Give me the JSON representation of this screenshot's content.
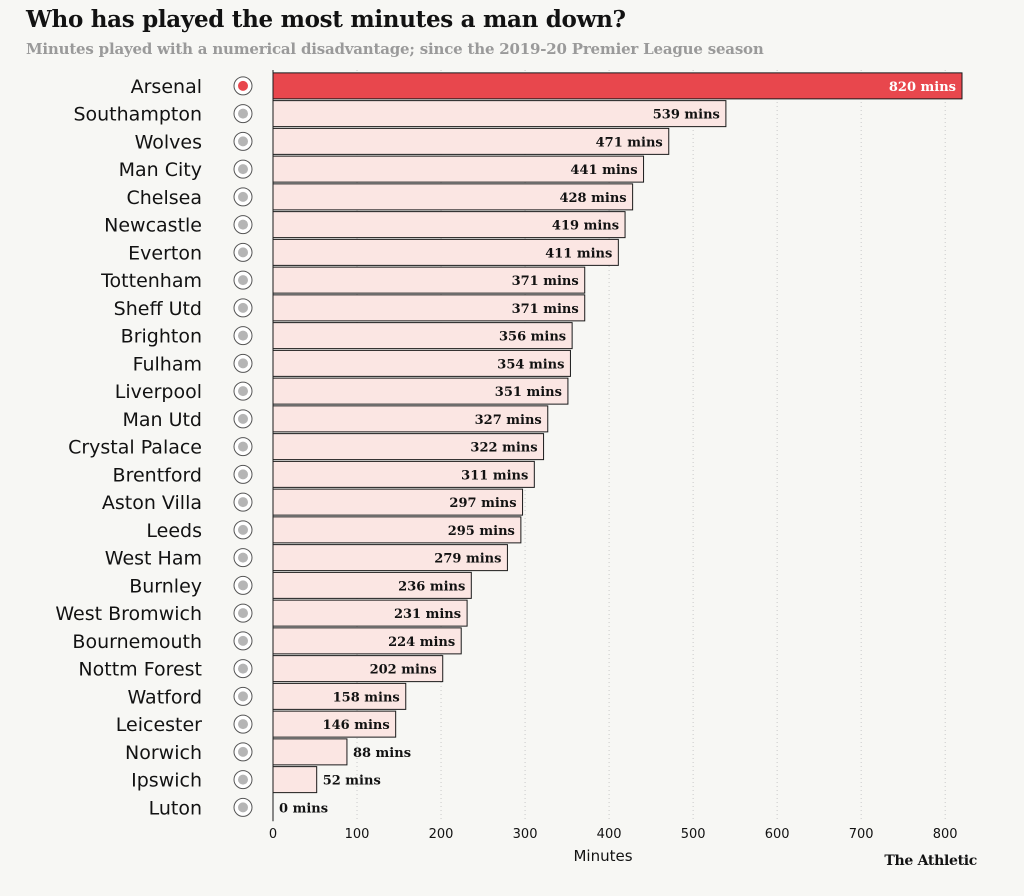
{
  "title": "Who has played the most minutes a man down?",
  "subtitle": "Minutes played with a numerical disadvantage; since the 2019-20 Premier League season",
  "brand": "The Athletic",
  "colors": {
    "highlight": "#e8474d",
    "bar": "#fbe6e3",
    "bar_stroke": "#1a1a1a",
    "grid": "#c9c9c9"
  },
  "chart_data": {
    "type": "bar",
    "orientation": "horizontal",
    "categories": [
      "Arsenal",
      "Southampton",
      "Wolves",
      "Man City",
      "Chelsea",
      "Newcastle",
      "Everton",
      "Tottenham",
      "Sheff Utd",
      "Brighton",
      "Fulham",
      "Liverpool",
      "Man Utd",
      "Crystal Palace",
      "Brentford",
      "Aston Villa",
      "Leeds",
      "West Ham",
      "Burnley",
      "West Bromwich",
      "Bournemouth",
      "Nottm Forest",
      "Watford",
      "Leicester",
      "Norwich",
      "Ipswich",
      "Luton"
    ],
    "values": [
      820,
      539,
      471,
      441,
      428,
      419,
      411,
      371,
      371,
      356,
      354,
      351,
      327,
      322,
      311,
      297,
      295,
      279,
      236,
      231,
      224,
      202,
      158,
      146,
      88,
      52,
      0
    ],
    "value_labels": [
      "820 mins",
      "539 mins",
      "471 mins",
      "441 mins",
      "428 mins",
      "419 mins",
      "411 mins",
      "371 mins",
      "371 mins",
      "356 mins",
      "354 mins",
      "351 mins",
      "327 mins",
      "322 mins",
      "311 mins",
      "297 mins",
      "295 mins",
      "279 mins",
      "236 mins",
      "231 mins",
      "224 mins",
      "202 mins",
      "158 mins",
      "146 mins",
      "88 mins",
      "52 mins",
      "0 mins"
    ],
    "highlight": "Arsenal",
    "xlabel": "Minutes",
    "xlim": [
      0,
      820
    ],
    "xticks": [
      0,
      100,
      200,
      300,
      400,
      500,
      600,
      700,
      800
    ],
    "grid": "vertical dotted"
  }
}
